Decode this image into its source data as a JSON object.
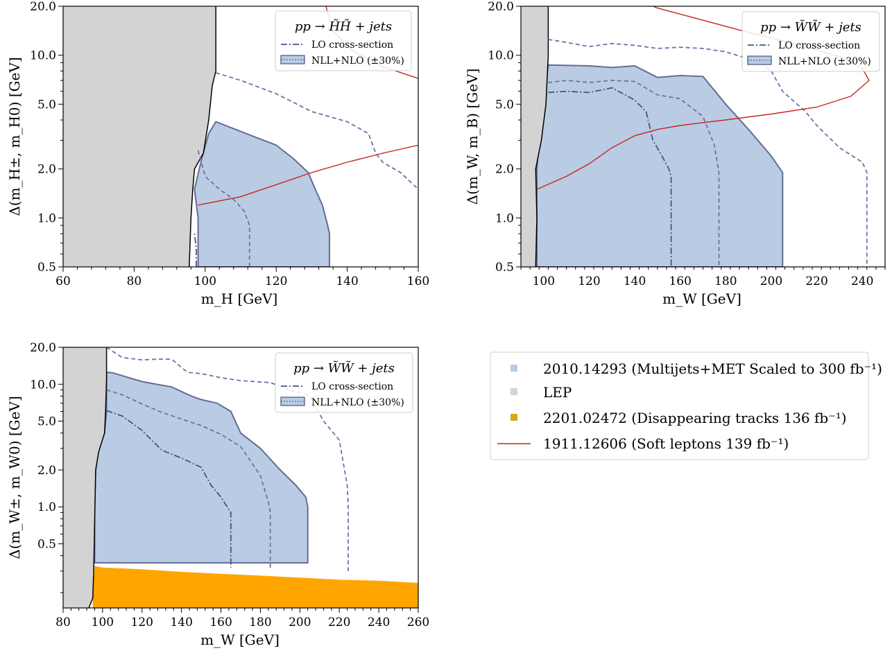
{
  "colors": {
    "lep": "#d3d3d3",
    "multijets": "#b9cce3",
    "multijets_edge": "#636b95",
    "dashed": "#6a73a8",
    "lo": "#4a5282",
    "soft_leptons": "#c8251f",
    "tracks": "#ffa500",
    "tracks_marker": "#daa520",
    "legend_border": "#cccccc"
  },
  "chart_data": [
    {
      "type": "area",
      "id": "higgsino",
      "xlabel": "m_H [GeV]",
      "ylabel": "Δ(m_H±, m_H0) [GeV]",
      "xlim": [
        60,
        160
      ],
      "ylim": [
        0.5,
        20.0
      ],
      "yscale": "log",
      "xticks": [
        "60",
        "80",
        "100",
        "120",
        "140",
        "160"
      ],
      "yticks": [
        "0.5",
        "1.0",
        "2.0",
        "5.0",
        "10.0",
        "20.0"
      ],
      "legend": {
        "title": "pp → H̃H̃ + jets",
        "lo_label": "LO cross-section",
        "nll_label": "NLL+NLO (±30%)"
      },
      "lep_boundary": [
        [
          103,
          20
        ],
        [
          103,
          8
        ],
        [
          102,
          6.5
        ],
        [
          101,
          4
        ],
        [
          99.5,
          2.5
        ],
        [
          97,
          2
        ],
        [
          96.5,
          1.5
        ],
        [
          96,
          1
        ],
        [
          95.5,
          0.5
        ]
      ],
      "nlo_region": [
        [
          98,
          0.5
        ],
        [
          98,
          1
        ],
        [
          97,
          1.5
        ],
        [
          99,
          2.3
        ],
        [
          101,
          3.3
        ],
        [
          103,
          3.9
        ],
        [
          110,
          3.4
        ],
        [
          120,
          2.8
        ],
        [
          125,
          2.3
        ],
        [
          129,
          1.9
        ],
        [
          131,
          1.5
        ],
        [
          133,
          1.2
        ],
        [
          134.5,
          0.9
        ],
        [
          135,
          0.8
        ],
        [
          135,
          0.5
        ]
      ],
      "dashed_outer": [
        [
          103,
          7.8
        ],
        [
          110,
          7
        ],
        [
          120,
          5.8
        ],
        [
          130,
          4.5
        ],
        [
          140,
          3.9
        ],
        [
          146,
          3.3
        ],
        [
          148,
          2.5
        ],
        [
          150,
          2.2
        ],
        [
          155,
          1.9
        ],
        [
          160,
          1.5
        ]
      ],
      "dashed_inner": [
        [
          98,
          2.6
        ],
        [
          100,
          1.8
        ],
        [
          104,
          1.5
        ],
        [
          108,
          1.3
        ],
        [
          111,
          1.1
        ],
        [
          112.5,
          0.9
        ],
        [
          112.5,
          0.5
        ]
      ],
      "lo_line": [
        [
          97.5,
          0.5
        ],
        [
          97.5,
          0.65
        ],
        [
          97,
          0.8
        ]
      ],
      "soft_leptons": [
        [
          98,
          1.2
        ],
        [
          110,
          1.35
        ],
        [
          120,
          1.6
        ],
        [
          130,
          1.9
        ],
        [
          140,
          2.2
        ],
        [
          150,
          2.5
        ],
        [
          160,
          2.8
        ]
      ],
      "soft_leptons_top": [
        [
          134,
          20
        ],
        [
          136,
          14
        ],
        [
          142,
          10.5
        ],
        [
          150,
          8.5
        ],
        [
          160,
          7.2
        ]
      ]
    },
    {
      "type": "area",
      "id": "wino_bino",
      "xlabel": "m_W [GeV]",
      "ylabel": "Δ(m_W, m_B) [GeV]",
      "xlim": [
        90,
        250
      ],
      "ylim": [
        0.5,
        20.0
      ],
      "yscale": "log",
      "xticks": [
        "100",
        "120",
        "140",
        "160",
        "180",
        "200",
        "220",
        "240"
      ],
      "yticks": [
        "0.5",
        "1.0",
        "2.0",
        "5.0",
        "10.0",
        "20.0"
      ],
      "legend": {
        "title": "pp → W̃W̃ + jets",
        "lo_label": "LO cross-section",
        "nll_label": "NLL+NLO (±30%)"
      },
      "lep_boundary": [
        [
          102,
          20
        ],
        [
          102,
          10
        ],
        [
          101,
          5
        ],
        [
          99,
          3
        ],
        [
          96.5,
          2
        ],
        [
          97,
          1
        ],
        [
          96.5,
          0.5
        ]
      ],
      "nlo_region": [
        [
          97,
          0.5
        ],
        [
          97,
          1
        ],
        [
          97,
          2
        ],
        [
          98,
          3
        ],
        [
          100,
          5
        ],
        [
          102,
          8.7
        ],
        [
          120,
          8.6
        ],
        [
          130,
          8.4
        ],
        [
          140,
          8.6
        ],
        [
          150,
          7.3
        ],
        [
          160,
          7.5
        ],
        [
          170,
          7.4
        ],
        [
          180,
          5
        ],
        [
          190,
          3.5
        ],
        [
          200,
          2.4
        ],
        [
          205,
          1.9
        ],
        [
          205,
          0.5
        ]
      ],
      "dashed_outer": [
        [
          102,
          12.5
        ],
        [
          110,
          12
        ],
        [
          120,
          11.3
        ],
        [
          130,
          11.8
        ],
        [
          140,
          11.5
        ],
        [
          150,
          11
        ],
        [
          160,
          11.2
        ],
        [
          170,
          11
        ],
        [
          180,
          10.5
        ],
        [
          190,
          9.5
        ],
        [
          195,
          9
        ],
        [
          200,
          8
        ],
        [
          205,
          6
        ],
        [
          215,
          4.5
        ],
        [
          220,
          3.7
        ],
        [
          230,
          2.7
        ],
        [
          240,
          2.2
        ],
        [
          242,
          1.9
        ],
        [
          242,
          0.5
        ]
      ],
      "dashed_inner": [
        [
          102,
          6.8
        ],
        [
          110,
          7
        ],
        [
          120,
          6.8
        ],
        [
          130,
          7
        ],
        [
          140,
          6.9
        ],
        [
          150,
          5.7
        ],
        [
          160,
          5.4
        ],
        [
          170,
          4.2
        ],
        [
          175,
          2.8
        ],
        [
          177,
          1.9
        ],
        [
          177,
          0.5
        ]
      ],
      "lo_line": [
        [
          102,
          5.9
        ],
        [
          110,
          6
        ],
        [
          120,
          5.9
        ],
        [
          130,
          6.3
        ],
        [
          140,
          5.3
        ],
        [
          145,
          4.5
        ],
        [
          148,
          3
        ],
        [
          152,
          2.4
        ],
        [
          155,
          2
        ],
        [
          156,
          1.8
        ],
        [
          156,
          0.5
        ]
      ],
      "soft_leptons": [
        [
          97,
          1.5
        ],
        [
          110,
          1.8
        ],
        [
          120,
          2.15
        ],
        [
          130,
          2.7
        ],
        [
          140,
          3.2
        ],
        [
          150,
          3.5
        ],
        [
          160,
          3.7
        ],
        [
          170,
          3.85
        ],
        [
          180,
          4.0
        ],
        [
          200,
          4.35
        ],
        [
          220,
          4.8
        ],
        [
          235,
          5.6
        ],
        [
          243,
          7
        ],
        [
          240,
          8.3
        ],
        [
          230,
          9.8
        ],
        [
          210,
          11.8
        ],
        [
          190,
          13.8
        ],
        [
          170,
          16.4
        ],
        [
          150,
          19.5
        ],
        [
          148,
          20
        ]
      ]
    },
    {
      "type": "area",
      "id": "wino",
      "xlabel": "m_W [GeV]",
      "ylabel": "Δ(m_W±, m_W0) [GeV]",
      "xlim": [
        80,
        260
      ],
      "ylim": [
        0.15,
        20.0
      ],
      "yscale": "log",
      "xticks": [
        "80",
        "100",
        "120",
        "140",
        "160",
        "180",
        "200",
        "220",
        "240",
        "260"
      ],
      "yticks": [
        "0.5",
        "1.0",
        "2.0",
        "5.0",
        "10.0",
        "20.0"
      ],
      "legend": {
        "title": "pp → W̃W̃ + jets",
        "lo_label": "LO cross-section",
        "nll_label": "NLL+NLO (±30%)"
      },
      "lep_boundary": [
        [
          102,
          20
        ],
        [
          102,
          11
        ],
        [
          101.5,
          6
        ],
        [
          101,
          4
        ],
        [
          98,
          2.8
        ],
        [
          96.5,
          2
        ],
        [
          96,
          0.8
        ],
        [
          95.5,
          0.3
        ],
        [
          95,
          0.18
        ],
        [
          93,
          0.15
        ]
      ],
      "nlo_region": [
        [
          96,
          0.35
        ],
        [
          96,
          1
        ],
        [
          96.5,
          2
        ],
        [
          98,
          3
        ],
        [
          101,
          4
        ],
        [
          102,
          6
        ],
        [
          102,
          12.5
        ],
        [
          105,
          12.4
        ],
        [
          120,
          10.5
        ],
        [
          135,
          9.5
        ],
        [
          145,
          8
        ],
        [
          150,
          7.5
        ],
        [
          158,
          7
        ],
        [
          165,
          6
        ],
        [
          170,
          4
        ],
        [
          180,
          3
        ],
        [
          190,
          2
        ],
        [
          198,
          1.5
        ],
        [
          203,
          1.2
        ],
        [
          204,
          1
        ],
        [
          204,
          0.35
        ]
      ],
      "tracks": [
        [
          95,
          0.15
        ],
        [
          95,
          0.18
        ],
        [
          96,
          0.33
        ],
        [
          100,
          0.32
        ],
        [
          120,
          0.31
        ],
        [
          140,
          0.295
        ],
        [
          160,
          0.285
        ],
        [
          180,
          0.275
        ],
        [
          200,
          0.265
        ],
        [
          220,
          0.255
        ],
        [
          240,
          0.25
        ],
        [
          260,
          0.24
        ],
        [
          260,
          0.15
        ]
      ],
      "dashed_outer": [
        [
          102,
          20
        ],
        [
          110,
          16.5
        ],
        [
          120,
          15.8
        ],
        [
          128,
          16
        ],
        [
          135,
          16
        ],
        [
          143,
          12.5
        ],
        [
          150,
          12.2
        ],
        [
          160,
          11.3
        ],
        [
          170,
          10.7
        ],
        [
          185,
          10.3
        ],
        [
          195,
          9
        ],
        [
          205,
          8
        ],
        [
          212,
          5
        ],
        [
          220,
          3.5
        ],
        [
          224,
          1.5
        ],
        [
          224.5,
          1
        ],
        [
          224.5,
          0.3
        ]
      ],
      "dashed_inner": [
        [
          102,
          9
        ],
        [
          110,
          8.2
        ],
        [
          120,
          6.9
        ],
        [
          130,
          5.9
        ],
        [
          140,
          5.2
        ],
        [
          150,
          4.6
        ],
        [
          160,
          3.9
        ],
        [
          170,
          3.1
        ],
        [
          180,
          1.8
        ],
        [
          184,
          1.1
        ],
        [
          185,
          0.9
        ],
        [
          185,
          0.31
        ]
      ],
      "lo_line": [
        [
          102,
          6.1
        ],
        [
          110,
          5.5
        ],
        [
          120,
          4.2
        ],
        [
          130,
          2.9
        ],
        [
          140,
          2.5
        ],
        [
          150,
          2.1
        ],
        [
          155,
          1.5
        ],
        [
          160,
          1.2
        ],
        [
          165,
          0.9
        ],
        [
          165,
          0.32
        ]
      ]
    }
  ],
  "shared_legend": {
    "multijets_label": "2010.14293 (Multijets+MET Scaled to 300 fb⁻¹)",
    "lep_label": "LEP",
    "tracks_label": "2201.02472  (Disappearing tracks 136 fb⁻¹)",
    "soft_label": "1911.12606 (Soft leptons 139 fb⁻¹)"
  }
}
